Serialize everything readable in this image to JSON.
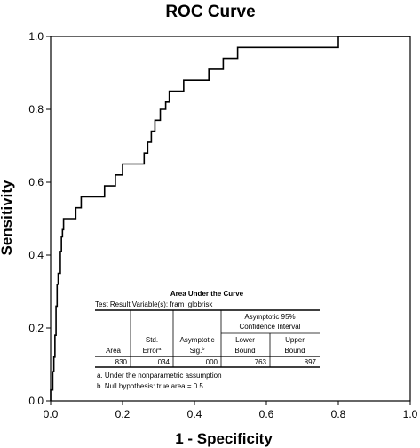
{
  "chart_data": {
    "type": "line",
    "title": "ROC Curve",
    "xlabel": "1 - Specificity",
    "ylabel": "Sensitivity",
    "xlim": [
      0.0,
      1.0
    ],
    "ylim": [
      0.0,
      1.0
    ],
    "x_ticks": [
      "0.0",
      "0.2",
      "0.4",
      "0.6",
      "0.8",
      "1.0"
    ],
    "y_ticks": [
      "0.0",
      "0.2",
      "0.4",
      "0.6",
      "0.8",
      "1.0"
    ],
    "grid": false,
    "series": [
      {
        "x": [
          0.0,
          0.0,
          0.006,
          0.006,
          0.009,
          0.009,
          0.012,
          0.012,
          0.015,
          0.015,
          0.018,
          0.018,
          0.021,
          0.021,
          0.027,
          0.027,
          0.03,
          0.03,
          0.033,
          0.033,
          0.036,
          0.036,
          0.045,
          0.045,
          0.07,
          0.07,
          0.085,
          0.085,
          0.15,
          0.15,
          0.18,
          0.18,
          0.2,
          0.2,
          0.22,
          0.22,
          0.26,
          0.26,
          0.27,
          0.27,
          0.28,
          0.28,
          0.29,
          0.29,
          0.305,
          0.305,
          0.32,
          0.32,
          0.33,
          0.33,
          0.35,
          0.35,
          0.37,
          0.37,
          0.44,
          0.44,
          0.48,
          0.48,
          0.5,
          0.5,
          0.52,
          0.52,
          0.8,
          0.8,
          1.0
        ],
        "y": [
          0.0,
          0.03,
          0.03,
          0.08,
          0.08,
          0.12,
          0.12,
          0.18,
          0.18,
          0.26,
          0.26,
          0.32,
          0.32,
          0.35,
          0.35,
          0.41,
          0.41,
          0.45,
          0.45,
          0.47,
          0.47,
          0.5,
          0.5,
          0.5,
          0.5,
          0.53,
          0.53,
          0.56,
          0.56,
          0.59,
          0.59,
          0.62,
          0.62,
          0.65,
          0.65,
          0.65,
          0.65,
          0.68,
          0.68,
          0.71,
          0.71,
          0.74,
          0.74,
          0.77,
          0.77,
          0.8,
          0.8,
          0.82,
          0.82,
          0.85,
          0.85,
          0.85,
          0.85,
          0.88,
          0.88,
          0.91,
          0.91,
          0.94,
          0.94,
          0.94,
          0.94,
          0.97,
          0.97,
          1.0,
          1.0
        ]
      }
    ]
  },
  "auc_table": {
    "title": "Area Under the Curve",
    "test_variable": "Test Result Variable(s):   fram_globrisk",
    "ci_header_line1": "Asymptotic 95%",
    "ci_header_line2": "Confidence Interval",
    "col_area": "Area",
    "col_stderr_line1": "Std.",
    "col_stderr_line2": "Error",
    "col_stderr_sup": "a",
    "col_sig_line1": "Asymptotic",
    "col_sig_line2": "Sig.",
    "col_sig_sup": "b",
    "col_lower_line1": "Lower",
    "col_lower_line2": "Bound",
    "col_upper_line1": "Upper",
    "col_upper_line2": "Bound",
    "values": [
      ".830",
      ".034",
      ".000",
      ".763",
      ".897"
    ],
    "footnote_a": "a. Under the nonparametric assumption",
    "footnote_b": "b. Null hypothesis: true area = 0.5"
  }
}
